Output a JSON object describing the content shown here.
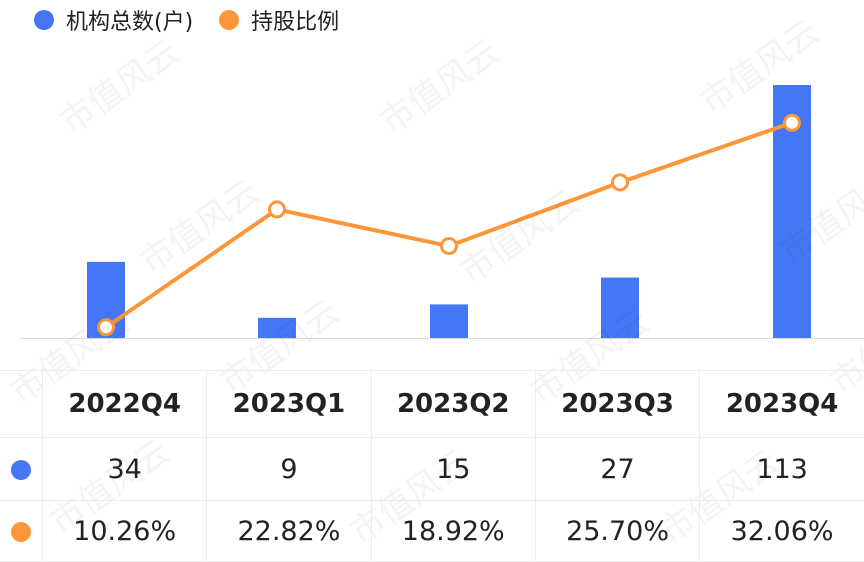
{
  "legend": {
    "series1_label": "机构总数(户)",
    "series2_label": "持股比例"
  },
  "watermark": "市值风云",
  "colors": {
    "bar": "#4477f6",
    "line": "#fd9639"
  },
  "chart_data": {
    "type": "bar+line",
    "categories": [
      "2022Q4",
      "2023Q1",
      "2023Q2",
      "2023Q3",
      "2023Q4"
    ],
    "series": [
      {
        "name": "机构总数(户)",
        "type": "bar",
        "values": [
          34,
          9,
          15,
          27,
          113
        ],
        "display": [
          "34",
          "9",
          "15",
          "27",
          "113"
        ]
      },
      {
        "name": "持股比例",
        "type": "line",
        "values": [
          10.26,
          22.82,
          18.92,
          25.7,
          32.06
        ],
        "display": [
          "10.26%",
          "22.82%",
          "18.92%",
          "25.70%",
          "32.06%"
        ]
      }
    ],
    "legend_position": "top-left",
    "grid": false
  }
}
